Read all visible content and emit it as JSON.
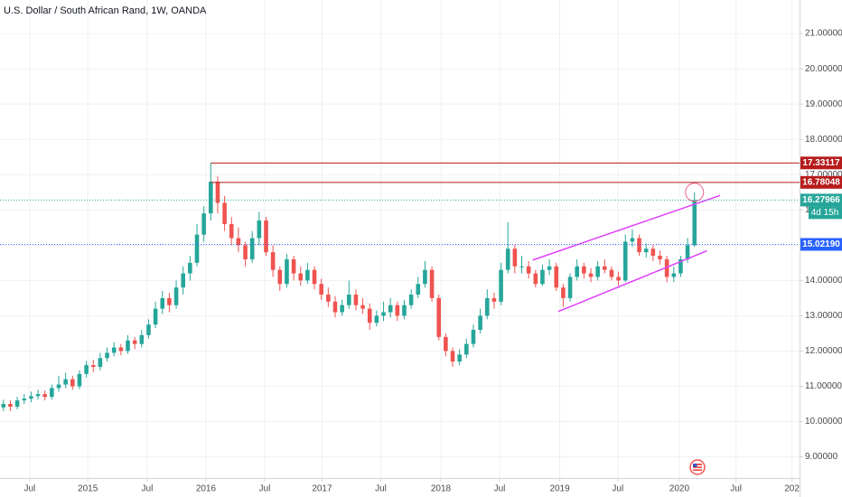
{
  "chart_data": {
    "type": "candlestick",
    "title": "U.S. Dollar / South African Rand, 1W, OANDA",
    "up_color": "#26a69a",
    "down_color": "#ef5350",
    "grid": true,
    "xlim": [
      -0.5,
      115.2
    ],
    "ylim": [
      8.4,
      21.95
    ],
    "xticks": [
      {
        "value": 3.8,
        "label": "Jul"
      },
      {
        "value": 12.2,
        "label": "2015"
      },
      {
        "value": 20.8,
        "label": "Jul"
      },
      {
        "value": 29.3,
        "label": "2016"
      },
      {
        "value": 37.8,
        "label": "Jul"
      },
      {
        "value": 46.1,
        "label": "2017"
      },
      {
        "value": 54.6,
        "label": "Jul"
      },
      {
        "value": 63.3,
        "label": "2018"
      },
      {
        "value": 71.8,
        "label": "Jul"
      },
      {
        "value": 80.5,
        "label": "2019"
      },
      {
        "value": 88.9,
        "label": "Jul"
      },
      {
        "value": 97.8,
        "label": "2020"
      },
      {
        "value": 106,
        "label": "Jul"
      },
      {
        "value": 114.1,
        "label": "202"
      }
    ],
    "yticks": [
      {
        "value": 9,
        "label": "9.00000"
      },
      {
        "value": 10,
        "label": "10.00000"
      },
      {
        "value": 11,
        "label": "11.00000"
      },
      {
        "value": 12,
        "label": "12.00000"
      },
      {
        "value": 13,
        "label": "13.00000"
      },
      {
        "value": 14,
        "label": "14.00000"
      },
      {
        "value": 15,
        "label": "15.00000"
      },
      {
        "value": 16,
        "label": "16.00000"
      },
      {
        "value": 17,
        "label": "17.00000"
      },
      {
        "value": 18,
        "label": "18.00000"
      },
      {
        "value": 19,
        "label": "19.00000"
      },
      {
        "value": 20,
        "label": "20.00000"
      },
      {
        "value": 21,
        "label": "21.00000"
      }
    ],
    "levels": [
      {
        "value": 17.33117,
        "label": "17.33117",
        "color": "#b71c1c",
        "style": "solid",
        "start": 30
      },
      {
        "value": 16.78048,
        "label": "16.78048",
        "color": "#b71c1c",
        "style": "solid",
        "start": 30
      },
      {
        "value": 16.27966,
        "label": "16.27966",
        "color": "#26a69a",
        "style": "dotted",
        "start": -0.5
      },
      {
        "value": 15.0219,
        "label": "15.02190",
        "color": "#2962ff",
        "style": "dotted",
        "start": -0.5
      }
    ],
    "countdown": "4d 15h",
    "channel_color": "#e040fb",
    "channel": [
      {
        "x": [
          76.6,
          103.7
        ],
        "y": [
          14.58,
          16.41
        ]
      },
      {
        "x": [
          80.3,
          101.8
        ],
        "y": [
          13.12,
          14.84
        ]
      }
    ],
    "circle": {
      "x": 100,
      "y": 16.5,
      "color": "#f06292"
    },
    "candles": [
      [
        10.4,
        10.62,
        10.3,
        10.5
      ],
      [
        10.5,
        10.6,
        10.3,
        10.42
      ],
      [
        10.42,
        10.7,
        10.35,
        10.6
      ],
      [
        10.6,
        10.78,
        10.5,
        10.65
      ],
      [
        10.65,
        10.85,
        10.55,
        10.72
      ],
      [
        10.72,
        10.9,
        10.62,
        10.78
      ],
      [
        10.78,
        10.88,
        10.6,
        10.7
      ],
      [
        10.7,
        11.05,
        10.62,
        10.95
      ],
      [
        10.95,
        11.3,
        10.85,
        11.05
      ],
      [
        11.05,
        11.38,
        10.95,
        11.2
      ],
      [
        11.2,
        11.3,
        10.9,
        11.0
      ],
      [
        11.0,
        11.45,
        10.92,
        11.35
      ],
      [
        11.35,
        11.72,
        11.25,
        11.6
      ],
      [
        11.6,
        11.75,
        11.4,
        11.55
      ],
      [
        11.55,
        11.95,
        11.45,
        11.8
      ],
      [
        11.8,
        12.1,
        11.7,
        11.95
      ],
      [
        11.95,
        12.25,
        11.85,
        12.1
      ],
      [
        12.1,
        12.2,
        11.88,
        12.0
      ],
      [
        12.0,
        12.45,
        11.92,
        12.3
      ],
      [
        12.3,
        12.4,
        12.05,
        12.2
      ],
      [
        12.2,
        12.6,
        12.1,
        12.45
      ],
      [
        12.45,
        12.9,
        12.35,
        12.75
      ],
      [
        12.75,
        13.4,
        12.65,
        13.2
      ],
      [
        13.2,
        13.7,
        13.05,
        13.5
      ],
      [
        13.5,
        13.65,
        13.1,
        13.3
      ],
      [
        13.3,
        14.0,
        13.2,
        13.8
      ],
      [
        13.8,
        14.4,
        13.6,
        14.2
      ],
      [
        14.2,
        14.7,
        14.0,
        14.5
      ],
      [
        14.5,
        15.6,
        14.4,
        15.3
      ],
      [
        15.3,
        16.1,
        15.1,
        15.9
      ],
      [
        15.9,
        17.33,
        15.7,
        16.8
      ],
      [
        16.8,
        16.95,
        15.9,
        16.2
      ],
      [
        16.2,
        16.4,
        15.4,
        15.6
      ],
      [
        15.6,
        15.8,
        15.0,
        15.2
      ],
      [
        15.2,
        15.5,
        14.8,
        15.0
      ],
      [
        15.0,
        15.1,
        14.4,
        14.6
      ],
      [
        14.6,
        15.4,
        14.5,
        15.2
      ],
      [
        15.2,
        15.95,
        15.0,
        15.7
      ],
      [
        15.7,
        15.8,
        14.7,
        14.8
      ],
      [
        14.8,
        15.0,
        14.1,
        14.3
      ],
      [
        14.3,
        14.4,
        13.7,
        13.9
      ],
      [
        13.9,
        14.75,
        13.8,
        14.6
      ],
      [
        14.6,
        14.7,
        14.0,
        14.2
      ],
      [
        14.2,
        14.4,
        13.85,
        14.0
      ],
      [
        14.0,
        14.5,
        13.9,
        14.3
      ],
      [
        14.3,
        14.4,
        13.75,
        13.9
      ],
      [
        13.9,
        14.05,
        13.45,
        13.6
      ],
      [
        13.6,
        13.8,
        13.25,
        13.4
      ],
      [
        13.4,
        13.55,
        12.95,
        13.1
      ],
      [
        13.1,
        13.45,
        13.0,
        13.3
      ],
      [
        13.3,
        14.0,
        13.2,
        13.6
      ],
      [
        13.6,
        13.75,
        13.15,
        13.3
      ],
      [
        13.3,
        13.5,
        13.05,
        13.2
      ],
      [
        13.2,
        13.35,
        12.6,
        12.8
      ],
      [
        12.8,
        13.15,
        12.7,
        13.0
      ],
      [
        13.0,
        13.4,
        12.85,
        13.1
      ],
      [
        13.1,
        13.5,
        12.95,
        13.3
      ],
      [
        13.3,
        13.4,
        12.85,
        13.0
      ],
      [
        13.0,
        13.45,
        12.9,
        13.3
      ],
      [
        13.3,
        13.75,
        13.2,
        13.6
      ],
      [
        13.6,
        14.1,
        13.5,
        13.9
      ],
      [
        13.9,
        14.55,
        13.8,
        14.3
      ],
      [
        14.3,
        14.4,
        13.4,
        13.5
      ],
      [
        13.5,
        13.6,
        12.3,
        12.4
      ],
      [
        12.4,
        12.5,
        11.85,
        12.0
      ],
      [
        12.0,
        12.1,
        11.55,
        11.7
      ],
      [
        11.7,
        12.05,
        11.6,
        11.9
      ],
      [
        11.9,
        12.35,
        11.8,
        12.2
      ],
      [
        12.2,
        12.75,
        12.1,
        12.6
      ],
      [
        12.6,
        13.2,
        12.5,
        13.0
      ],
      [
        13.0,
        13.75,
        12.9,
        13.5
      ],
      [
        13.5,
        13.65,
        13.2,
        13.4
      ],
      [
        13.4,
        14.5,
        13.3,
        14.3
      ],
      [
        14.3,
        15.65,
        14.2,
        14.9
      ],
      [
        14.9,
        15.0,
        14.2,
        14.4
      ],
      [
        14.4,
        14.7,
        14.2,
        14.4
      ],
      [
        14.4,
        14.55,
        14.05,
        14.2
      ],
      [
        14.2,
        14.3,
        13.8,
        13.9
      ],
      [
        13.9,
        14.45,
        13.85,
        14.3
      ],
      [
        14.3,
        14.6,
        14.15,
        14.4
      ],
      [
        14.4,
        14.5,
        13.7,
        13.8
      ],
      [
        13.8,
        13.9,
        13.25,
        13.5
      ],
      [
        13.5,
        14.2,
        13.4,
        14.1
      ],
      [
        14.1,
        14.6,
        14.0,
        14.4
      ],
      [
        14.4,
        14.5,
        14.05,
        14.2
      ],
      [
        14.2,
        14.35,
        13.95,
        14.1
      ],
      [
        14.1,
        14.55,
        14.0,
        14.4
      ],
      [
        14.4,
        14.6,
        14.2,
        14.3
      ],
      [
        14.3,
        14.4,
        14.0,
        14.1
      ],
      [
        14.1,
        14.25,
        13.85,
        14.0
      ],
      [
        14.0,
        15.3,
        13.95,
        15.1
      ],
      [
        15.1,
        15.45,
        14.95,
        15.2
      ],
      [
        15.2,
        15.3,
        14.7,
        14.8
      ],
      [
        14.8,
        15.05,
        14.65,
        14.9
      ],
      [
        14.9,
        15.0,
        14.55,
        14.7
      ],
      [
        14.7,
        14.85,
        14.45,
        14.6
      ],
      [
        14.6,
        14.7,
        13.95,
        14.1
      ],
      [
        14.1,
        14.4,
        13.95,
        14.2
      ],
      [
        14.2,
        14.7,
        14.1,
        14.6
      ],
      [
        14.6,
        15.2,
        14.5,
        15.0
      ],
      [
        15.0,
        16.5,
        14.95,
        16.28
      ]
    ]
  }
}
